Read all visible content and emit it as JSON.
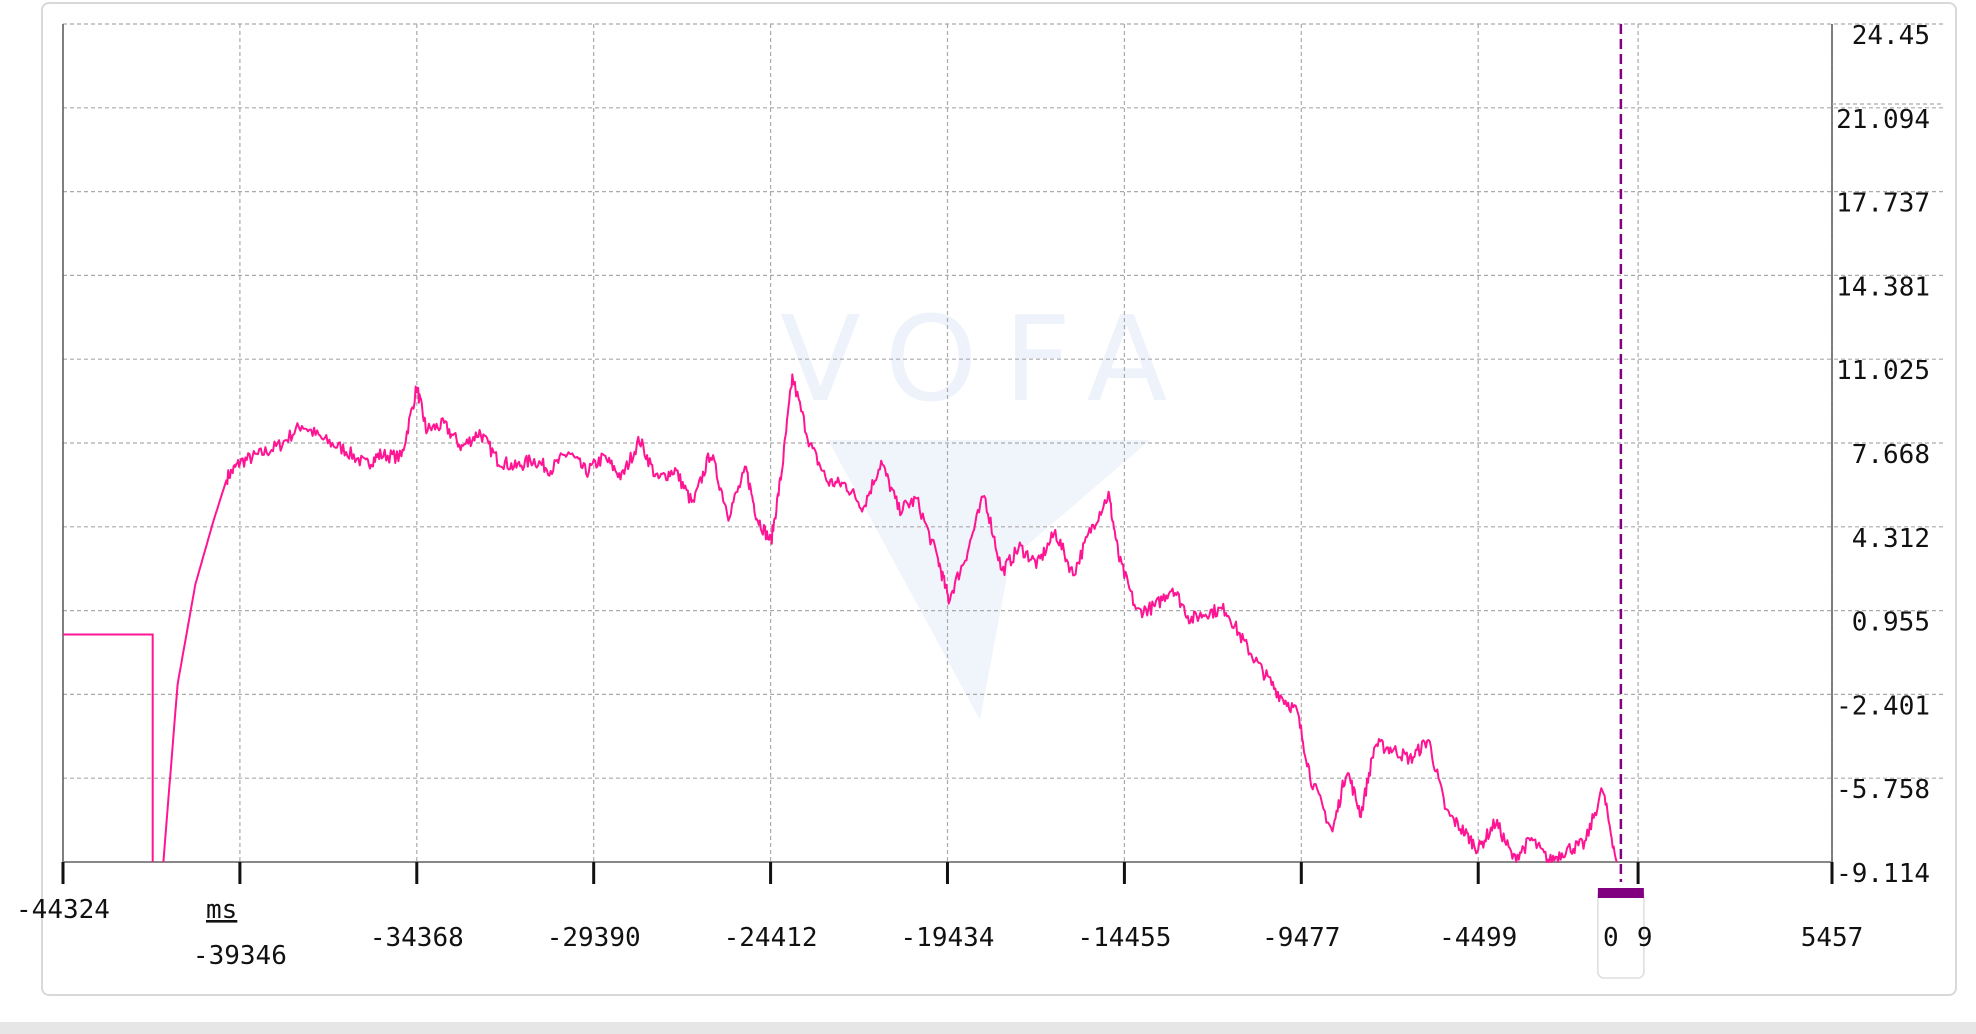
{
  "watermark": "VOFA",
  "chart_data": {
    "type": "line",
    "xlabel": "ms",
    "ylabel": "",
    "xlim": [
      -44324,
      5457
    ],
    "ylim": [
      -9.114,
      24.45
    ],
    "grid": true,
    "x_ticks": [
      "-44324",
      "-39346",
      "-34368",
      "-29390",
      "-24412",
      "-19434",
      "-14455",
      "-9477",
      "-4499",
      "0",
      "5457"
    ],
    "x_tick_values": [
      -44324,
      -39346,
      -34368,
      -29390,
      -24412,
      -19434,
      -14455,
      -9477,
      -4499,
      0,
      5457
    ],
    "y_ticks": [
      "24.45",
      "21.094",
      "17.737",
      "14.381",
      "11.025",
      "7.668",
      "4.312",
      "0.955",
      "-2.401",
      "-5.758",
      "-9.114"
    ],
    "cursor": {
      "x": -484,
      "label": "0",
      "label_suffix": "9",
      "color": "#800080"
    },
    "colors": {
      "series": "#ff1493",
      "grid": "#aaaaaa"
    },
    "series": [
      {
        "step_prefix": {
          "x": [
            -44324,
            -41800,
            -41800
          ],
          "y": [
            0.0,
            0.0,
            -9.114
          ]
        },
        "x": [
          -41500,
          -41100,
          -40600,
          -40100,
          -39700,
          -39346,
          -38800,
          -38200,
          -37600,
          -37000,
          -36400,
          -35800,
          -35400,
          -34800,
          -34368,
          -34100,
          -33600,
          -33100,
          -32600,
          -32100,
          -31600,
          -31100,
          -30600,
          -30100,
          -29600,
          -29100,
          -28600,
          -28100,
          -27600,
          -27100,
          -26600,
          -26100,
          -25600,
          -25100,
          -24800,
          -24400,
          -24100,
          -23800,
          -23300,
          -22800,
          -22300,
          -21800,
          -21300,
          -20800,
          -20300,
          -19700,
          -19400,
          -18900,
          -18400,
          -17900,
          -17400,
          -16900,
          -16400,
          -15900,
          -15400,
          -14900,
          -14600,
          -14100,
          -13600,
          -13100,
          -12600,
          -12100,
          -11600,
          -11100,
          -10600,
          -10100,
          -9600,
          -9200,
          -8600,
          -8200,
          -7800,
          -7400,
          -6900,
          -6400,
          -5900,
          -5400,
          -4900,
          -4499,
          -4000,
          -3500,
          -3000,
          -2500,
          -2000,
          -1500,
          -1000,
          -600
        ],
        "y": [
          -9.114,
          -2.0,
          2.0,
          4.5,
          6.3,
          6.9,
          7.2,
          7.6,
          8.4,
          7.8,
          7.4,
          6.8,
          7.2,
          7.1,
          9.9,
          8.2,
          8.4,
          7.5,
          8.1,
          7.0,
          6.7,
          7.0,
          6.6,
          7.3,
          6.5,
          7.1,
          6.3,
          7.8,
          6.2,
          6.6,
          5.2,
          7.3,
          4.8,
          6.6,
          4.7,
          3.7,
          6.5,
          10.3,
          7.6,
          6.1,
          6.0,
          5.1,
          6.9,
          5.0,
          5.4,
          3.0,
          1.4,
          3.2,
          5.6,
          2.5,
          3.5,
          2.8,
          4.1,
          2.4,
          4.2,
          5.6,
          3.0,
          0.9,
          1.1,
          1.9,
          0.6,
          0.9,
          1.0,
          -0.3,
          -1.4,
          -2.4,
          -3.1,
          -5.8,
          -7.9,
          -5.4,
          -7.2,
          -4.4,
          -4.6,
          -5.0,
          -4.2,
          -7.1,
          -7.9,
          -8.6,
          -7.5,
          -9.0,
          -8.2,
          -9.1,
          -8.6,
          -8.4,
          -6.2,
          -9.114
        ]
      }
    ]
  }
}
